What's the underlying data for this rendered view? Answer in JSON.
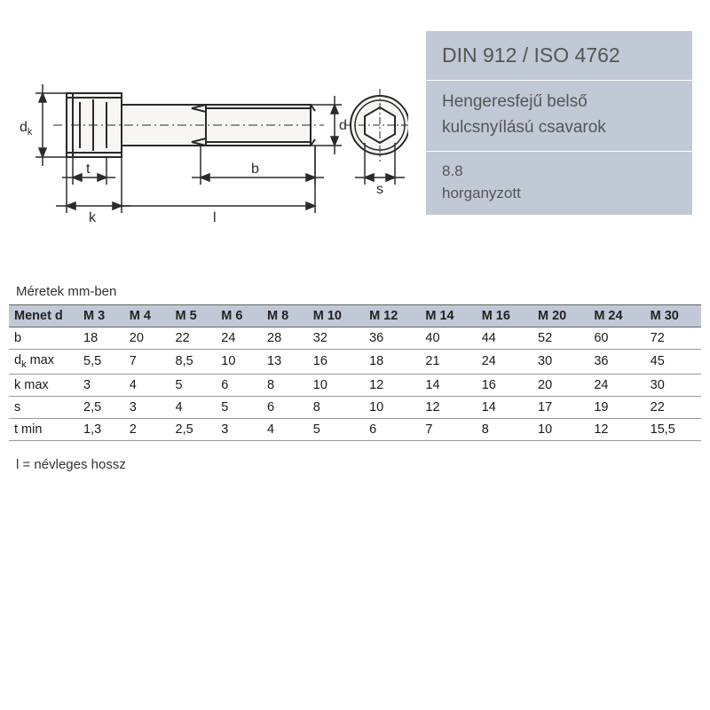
{
  "info": {
    "title": "DIN 912 / ISO 4762",
    "subtitle_line1": "Hengeresfejű belső",
    "subtitle_line2": "kulcsnyílású csavarok",
    "grade": "8.8",
    "finish": "horganyzott"
  },
  "diagram": {
    "labels": {
      "dk": "d",
      "dk_sub": "k",
      "t": "t",
      "k": "k",
      "l": "l",
      "b": "b",
      "d": "d",
      "s": "s"
    },
    "stroke": "#2a2a2a",
    "fill_light": "#f8f6f4",
    "fill_shade": "#d9d5d0"
  },
  "table": {
    "caption": "Méretek mm-ben",
    "header_bg": "#c1c9d6",
    "border_color": "#999999",
    "columns": [
      "Menet d",
      "M 3",
      "M 4",
      "M 5",
      "M 6",
      "M 8",
      "M 10",
      "M 12",
      "M 14",
      "M 16",
      "M 20",
      "M 24",
      "M 30"
    ],
    "rows": [
      {
        "label": "b",
        "cells": [
          "18",
          "20",
          "22",
          "24",
          "28",
          "32",
          "36",
          "40",
          "44",
          "52",
          "60",
          "72"
        ]
      },
      {
        "label": "d_k max",
        "label_html": "d<sub>k</sub> max",
        "cells": [
          "5,5",
          "7",
          "8,5",
          "10",
          "13",
          "16",
          "18",
          "21",
          "24",
          "30",
          "36",
          "45"
        ]
      },
      {
        "label": "k max",
        "cells": [
          "3",
          "4",
          "5",
          "6",
          "8",
          "10",
          "12",
          "14",
          "16",
          "20",
          "24",
          "30"
        ]
      },
      {
        "label": "s",
        "cells": [
          "2,5",
          "3",
          "4",
          "5",
          "6",
          "8",
          "10",
          "12",
          "14",
          "17",
          "19",
          "22"
        ]
      },
      {
        "label": "t min",
        "cells": [
          "1,3",
          "2",
          "2,5",
          "3",
          "4",
          "5",
          "6",
          "7",
          "8",
          "10",
          "12",
          "15,5"
        ]
      }
    ],
    "footnote": "l = névleges hossz"
  }
}
